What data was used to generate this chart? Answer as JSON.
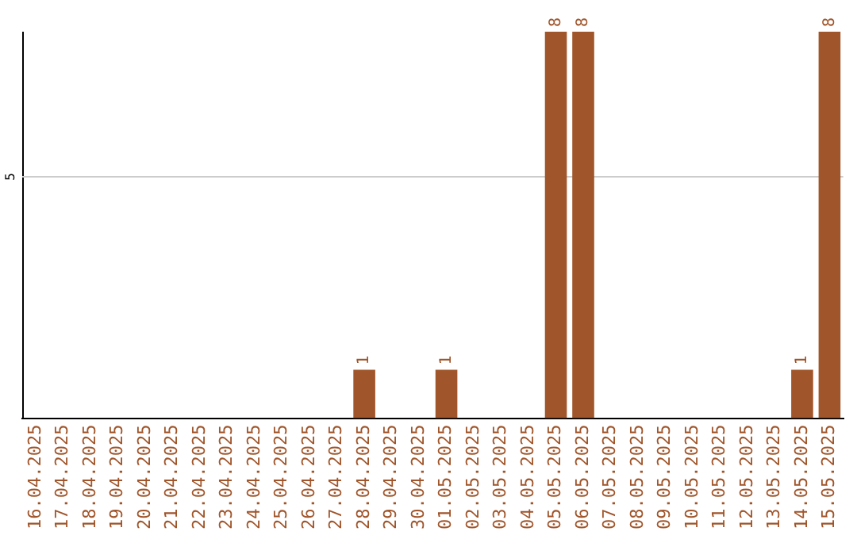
{
  "chart_data": {
    "type": "bar",
    "categories": [
      "16.04.2025",
      "17.04.2025",
      "18.04.2025",
      "19.04.2025",
      "20.04.2025",
      "21.04.2025",
      "22.04.2025",
      "23.04.2025",
      "24.04.2025",
      "25.04.2025",
      "26.04.2025",
      "27.04.2025",
      "28.04.2025",
      "29.04.2025",
      "30.04.2025",
      "01.05.2025",
      "02.05.2025",
      "03.05.2025",
      "04.05.2025",
      "05.05.2025",
      "06.05.2025",
      "07.05.2025",
      "08.05.2025",
      "09.05.2025",
      "10.05.2025",
      "11.05.2025",
      "12.05.2025",
      "13.05.2025",
      "14.05.2025",
      "15.05.2025"
    ],
    "values": [
      null,
      null,
      null,
      null,
      null,
      null,
      null,
      null,
      null,
      null,
      null,
      null,
      1,
      null,
      null,
      1,
      null,
      null,
      null,
      8,
      8,
      null,
      null,
      null,
      null,
      null,
      null,
      null,
      1,
      8
    ],
    "value_labels": [
      null,
      null,
      null,
      null,
      null,
      null,
      null,
      null,
      null,
      null,
      null,
      null,
      "1",
      null,
      null,
      "1",
      null,
      null,
      null,
      "8",
      "8",
      null,
      null,
      null,
      null,
      null,
      null,
      null,
      "1",
      "8"
    ],
    "color": "#a0552a",
    "ylim": [
      0,
      8
    ],
    "ref_lines": [
      {
        "axis": "y",
        "value": 5,
        "label": "5",
        "color": "#cccccc"
      }
    ],
    "legend": false
  }
}
